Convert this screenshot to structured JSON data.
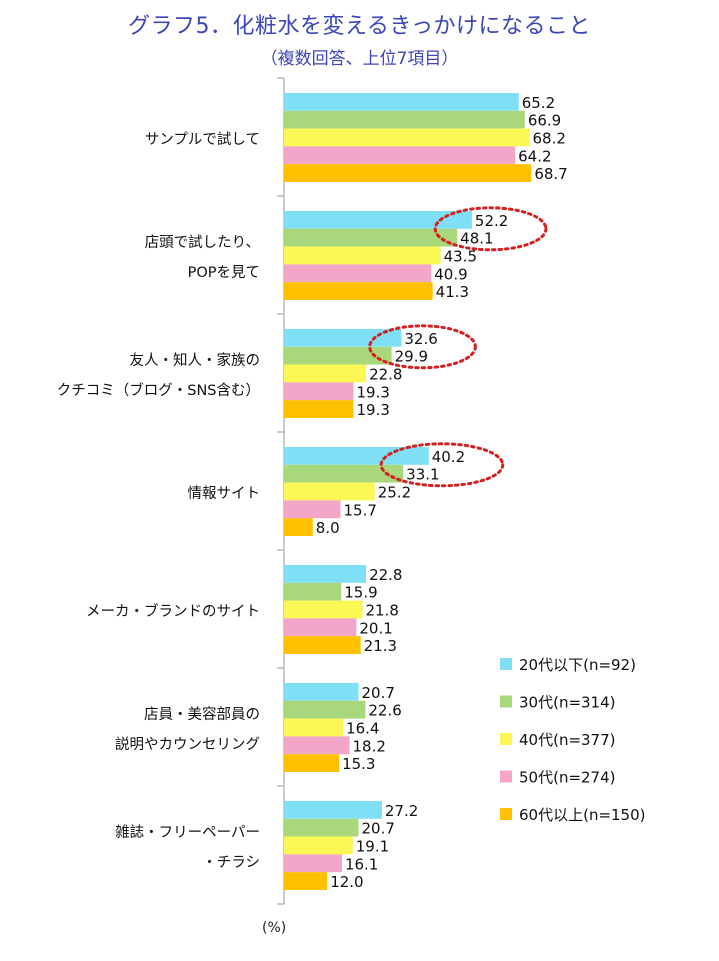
{
  "chart_data": {
    "type": "bar",
    "orientation": "horizontal",
    "title": "グラフ5．化粧水を変えるきっかけになること",
    "subtitle": "（複数回答、上位7項目）",
    "unit_label": "(%)",
    "xlim": [
      0,
      100
    ],
    "legend_position": "right",
    "categories": [
      [
        "サンプルで試して"
      ],
      [
        "店頭で試したり、",
        "POPを見て"
      ],
      [
        "友人・知人・家族の",
        "クチコミ（ブログ・SNS含む）"
      ],
      [
        "情報サイト"
      ],
      [
        "メーカ・ブランドのサイト"
      ],
      [
        "店員・美容部員の",
        "説明やカウンセリング"
      ],
      [
        "雑誌・フリーペーパー",
        "・チラシ"
      ]
    ],
    "series": [
      {
        "name": "20代以下(n=92)",
        "color": "#7fe0f5",
        "values": [
          65.2,
          52.2,
          32.6,
          40.2,
          22.8,
          20.7,
          27.2
        ]
      },
      {
        "name": "30代(n=314)",
        "color": "#a9d77c",
        "values": [
          66.9,
          48.1,
          29.9,
          33.1,
          15.9,
          22.6,
          20.7
        ]
      },
      {
        "name": "40代(n=377)",
        "color": "#fbf856",
        "values": [
          68.2,
          43.5,
          22.8,
          25.2,
          21.8,
          16.4,
          19.1
        ]
      },
      {
        "name": "50代(n=274)",
        "color": "#f4a6c9",
        "values": [
          64.2,
          40.9,
          19.3,
          15.7,
          20.1,
          18.2,
          16.1
        ]
      },
      {
        "name": "60代以上(n=150)",
        "color": "#ffc000",
        "values": [
          68.7,
          41.3,
          19.3,
          8.0,
          21.3,
          15.3,
          12.0
        ]
      }
    ],
    "highlight_color": "#d42020",
    "highlights": [
      {
        "category_index": 1,
        "series": [
          0,
          1
        ]
      },
      {
        "category_index": 2,
        "series": [
          0,
          1
        ]
      },
      {
        "category_index": 3,
        "series": [
          0,
          1
        ]
      }
    ]
  }
}
